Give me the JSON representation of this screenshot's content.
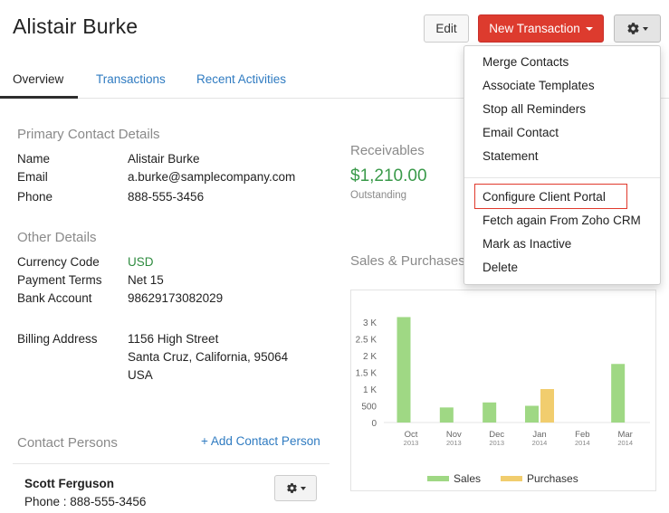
{
  "header": {
    "title": "Alistair Burke",
    "edit_label": "Edit",
    "new_transaction_label": "New Transaction"
  },
  "tabs": [
    {
      "label": "Overview",
      "active": true
    },
    {
      "label": "Transactions",
      "active": false
    },
    {
      "label": "Recent Activities",
      "active": false
    }
  ],
  "primary_contact": {
    "title": "Primary Contact Details",
    "rows": [
      {
        "label": "Name",
        "value": "Alistair Burke"
      },
      {
        "label": "Email",
        "value": "a.burke@samplecompany.com"
      },
      {
        "label": "Phone",
        "value": "888-555-3456"
      }
    ]
  },
  "other_details": {
    "title": "Other Details",
    "rows": [
      {
        "label": "Currency Code",
        "value": "USD"
      },
      {
        "label": "Payment Terms",
        "value": "Net 15"
      },
      {
        "label": "Bank Account",
        "value": "98629173082029"
      }
    ],
    "billing_label": "Billing Address",
    "billing_lines": [
      "1156 High Street",
      "Santa Cruz, California, 95064",
      "USA"
    ]
  },
  "receivables": {
    "title": "Receivables",
    "amount": "$1,210.00",
    "sub": "Outstanding"
  },
  "sales_purchases_title": "Sales & Purchases",
  "contact_persons": {
    "title": "Contact Persons",
    "add_label": "+ Add Contact Person",
    "person_name": "Scott Ferguson",
    "person_phone": "Phone : 888-555-3456"
  },
  "menu": {
    "items": [
      "Merge Contacts",
      "Associate Templates",
      "Stop all Reminders",
      "Email Contact",
      "Statement",
      "Configure Client Portal",
      "Fetch again From Zoho CRM",
      "Mark as Inactive",
      "Delete"
    ],
    "highlighted": "Configure Client Portal"
  },
  "colors": {
    "sales": "#9fd884",
    "purchases": "#f1cd6e",
    "accent_red": "#dd3b2e",
    "link_blue": "#2f7bc1"
  },
  "chart_data": {
    "type": "bar",
    "categories": [
      {
        "month": "Oct",
        "year": "2013"
      },
      {
        "month": "Nov",
        "year": "2013"
      },
      {
        "month": "Dec",
        "year": "2013"
      },
      {
        "month": "Jan",
        "year": "2014"
      },
      {
        "month": "Feb",
        "year": "2014"
      },
      {
        "month": "Mar",
        "year": "2014"
      }
    ],
    "series": [
      {
        "name": "Sales",
        "values": [
          3150,
          450,
          600,
          500,
          0,
          1750
        ]
      },
      {
        "name": "Purchases",
        "values": [
          0,
          0,
          0,
          1000,
          0,
          0
        ]
      }
    ],
    "yticks": [
      0,
      500,
      1000,
      1500,
      2000,
      2500,
      3000
    ],
    "ytick_labels": [
      "0",
      "500",
      "1 K",
      "1.5 K",
      "2 K",
      "2.5 K",
      "3 K"
    ],
    "ylim": [
      0,
      3200
    ],
    "legend_position": "bottom"
  }
}
